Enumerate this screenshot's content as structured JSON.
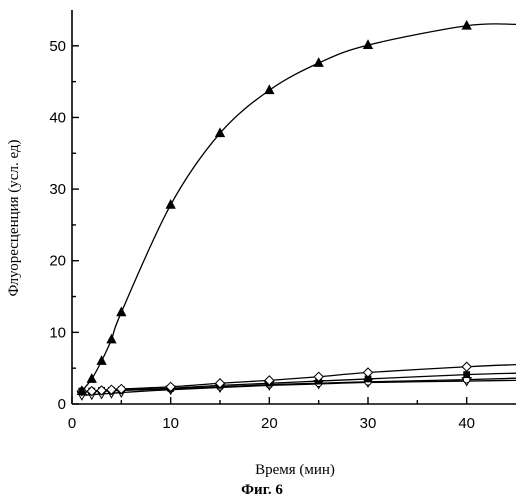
{
  "figure": {
    "caption": "Фиг. 6"
  },
  "chart_data": {
    "type": "line",
    "xlabel": "Время (мин)",
    "ylabel": "Флуоресценция (усл. ед)",
    "xlim": [
      0,
      45
    ],
    "ylim": [
      0,
      55
    ],
    "x_ticks": [
      0,
      10,
      20,
      30,
      40
    ],
    "y_ticks": [
      0,
      10,
      20,
      30,
      40,
      50
    ],
    "grid": false,
    "legend": "none",
    "series": [
      {
        "marker": "filled-triangle",
        "x": [
          1,
          2,
          3,
          4,
          5,
          10,
          15,
          20,
          25,
          30,
          40
        ],
        "y": [
          1.8,
          3.5,
          6,
          9,
          12.8,
          27.8,
          37.8,
          43.8,
          47.6,
          50.1,
          52.8
        ],
        "curve_end": [
          45,
          53
        ]
      },
      {
        "marker": "open-diamond",
        "x": [
          1,
          2,
          3,
          4,
          5,
          10,
          15,
          20,
          25,
          30,
          40
        ],
        "y": [
          1.8,
          1.8,
          1.9,
          2,
          2.1,
          2.4,
          2.9,
          3.3,
          3.8,
          4.4,
          5.2
        ],
        "curve_end": [
          45,
          5.5
        ]
      },
      {
        "marker": "filled-square",
        "x": [
          1,
          2,
          3,
          4,
          5,
          10,
          15,
          20,
          25,
          30,
          40
        ],
        "y": [
          1.8,
          1.8,
          1.9,
          1.9,
          2,
          2.2,
          2.6,
          2.9,
          3.2,
          3.5,
          4.1
        ],
        "curve_end": [
          45,
          4.3
        ]
      },
      {
        "marker": "open-circle",
        "x": [
          1,
          2,
          3,
          4,
          5,
          10,
          15,
          20,
          25,
          30,
          40
        ],
        "y": [
          1.7,
          1.7,
          1.8,
          1.8,
          1.9,
          2.1,
          2.4,
          2.7,
          2.9,
          3.1,
          3.4
        ],
        "curve_end": [
          45,
          3.6
        ]
      },
      {
        "marker": "open-triangle-down",
        "x": [
          1,
          2,
          3,
          4,
          5,
          10,
          15,
          20,
          25,
          30,
          40
        ],
        "y": [
          1.2,
          1.3,
          1.4,
          1.5,
          1.6,
          2,
          2.3,
          2.6,
          2.8,
          3,
          3.2
        ],
        "curve_end": [
          45,
          3.3
        ]
      }
    ]
  }
}
